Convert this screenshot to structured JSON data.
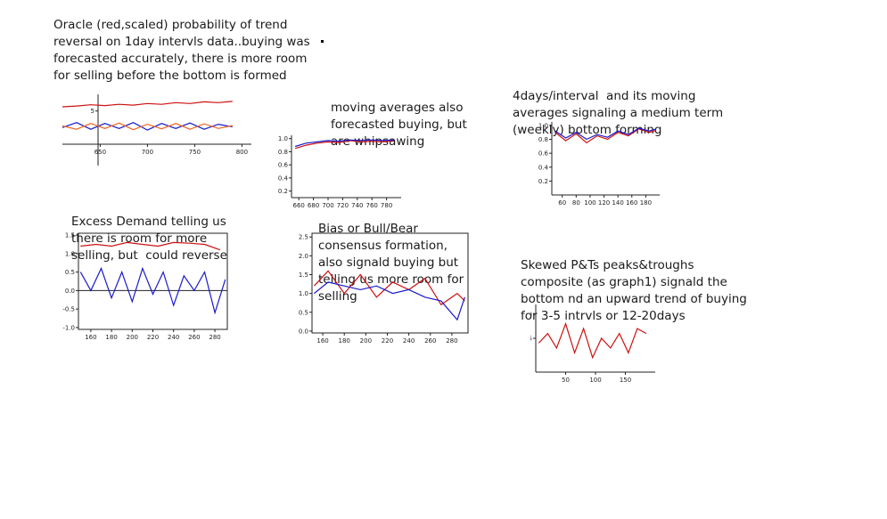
{
  "notes": {
    "n1": "Oracle (red,scaled) probability of trend\nreversal on 1day intervls data..buying was\nforecasted accurately, there is more room\nfor selling before the bottom is formed",
    "n2": "moving averages also\nforecasted buying, but\nare whipsawing",
    "n3": "4days/interval  and its moving\naverages signaling a medium term\n(weekly) bottom forming",
    "n4": "Excess Demand telling us\nthere is room for more\nselling, but  could reverse",
    "n5": "Bias or Bull/Bear\nconsensus formation,\nalso signald buying but\ntelling us more room for\nselling",
    "n6": "Skewed P&Ts peaks&troughs\ncomposite (as graph1) signald the\nbottom nd an upward trend of buying\nfor 3-5 intrvls or 12-20days"
  },
  "colors": {
    "red": "#cc1111",
    "blue": "#1a1acc",
    "orange": "#ee6622",
    "axis": "#222222"
  },
  "chart_data": [
    {
      "id": "c1",
      "type": "line",
      "xticks": [
        "650",
        "700",
        "750",
        "800"
      ],
      "xtick_values": [
        650,
        700,
        750,
        800
      ],
      "yticks": [
        "5"
      ],
      "ytick_values": [
        5
      ],
      "xlim": [
        610,
        810
      ],
      "ylim": [
        -3,
        9
      ],
      "series": [
        {
          "color": "red",
          "x": [
            610,
            625,
            640,
            655,
            670,
            685,
            700,
            715,
            730,
            745,
            760,
            775,
            790
          ],
          "y": [
            6.0,
            6.2,
            6.5,
            6.3,
            6.6,
            6.4,
            6.8,
            6.6,
            7.0,
            6.8,
            7.2,
            7.0,
            7.3
          ]
        },
        {
          "color": "blue",
          "x": [
            610,
            625,
            640,
            655,
            670,
            685,
            700,
            715,
            730,
            745,
            760,
            775,
            790
          ],
          "y": [
            1.0,
            2.2,
            0.6,
            2.0,
            0.8,
            2.2,
            0.4,
            2.0,
            0.8,
            2.1,
            0.6,
            1.8,
            1.2
          ]
        },
        {
          "color": "orange",
          "x": [
            610,
            625,
            640,
            655,
            670,
            685,
            700,
            715,
            730,
            745,
            760,
            775,
            790
          ],
          "y": [
            1.4,
            0.6,
            2.0,
            0.8,
            2.1,
            0.5,
            1.8,
            0.7,
            2.0,
            0.6,
            1.9,
            0.8,
            1.5
          ]
        }
      ]
    },
    {
      "id": "c2",
      "type": "line",
      "xticks": [
        "660",
        "680",
        "700",
        "720",
        "740",
        "760",
        "780"
      ],
      "xtick_values": [
        660,
        680,
        700,
        720,
        740,
        760,
        780
      ],
      "yticks": [
        "0.2",
        "0.4",
        "0.6",
        "0.8",
        "1.0"
      ],
      "ytick_values": [
        0.2,
        0.4,
        0.6,
        0.8,
        1.0
      ],
      "xlim": [
        650,
        800
      ],
      "ylim": [
        0.1,
        1.05
      ],
      "series": [
        {
          "color": "red",
          "x": [
            655,
            670,
            685,
            700,
            715,
            730,
            745,
            760,
            775,
            790
          ],
          "y": [
            0.85,
            0.9,
            0.93,
            0.95,
            0.94,
            0.97,
            0.95,
            0.96,
            0.95,
            0.97
          ]
        },
        {
          "color": "blue",
          "x": [
            655,
            670,
            685,
            700,
            715,
            730,
            745,
            760,
            775,
            790
          ],
          "y": [
            0.88,
            0.93,
            0.95,
            0.97,
            0.96,
            0.98,
            0.97,
            0.98,
            0.97,
            0.98
          ]
        }
      ]
    },
    {
      "id": "c3",
      "type": "line",
      "xticks": [
        "60",
        "80",
        "100",
        "120",
        "140",
        "160",
        "180"
      ],
      "xtick_values": [
        60,
        80,
        100,
        120,
        140,
        160,
        180
      ],
      "yticks": [
        "0.2",
        "0.4",
        "0.6",
        "0.8",
        "1.0"
      ],
      "ytick_values": [
        0.2,
        0.4,
        0.6,
        0.8,
        1.0
      ],
      "xlim": [
        45,
        200
      ],
      "ylim": [
        0.0,
        1.05
      ],
      "series": [
        {
          "color": "red",
          "x": [
            50,
            65,
            80,
            95,
            110,
            125,
            140,
            155,
            170,
            185,
            195
          ],
          "y": [
            0.9,
            0.78,
            0.88,
            0.75,
            0.85,
            0.8,
            0.9,
            0.85,
            0.95,
            0.9,
            0.93
          ]
        },
        {
          "color": "blue",
          "x": [
            50,
            65,
            80,
            95,
            110,
            125,
            140,
            155,
            170,
            185,
            195
          ],
          "y": [
            0.92,
            0.82,
            0.9,
            0.8,
            0.87,
            0.83,
            0.92,
            0.87,
            0.96,
            0.92,
            0.95
          ]
        }
      ]
    },
    {
      "id": "c4",
      "type": "line",
      "xticks": [
        "160",
        "180",
        "200",
        "220",
        "240",
        "260",
        "280"
      ],
      "xtick_values": [
        160,
        180,
        200,
        220,
        240,
        260,
        280
      ],
      "yticks": [
        "-1.0",
        "-0.5",
        "0.0",
        "0.5",
        "1.0",
        "1.5"
      ],
      "ytick_values": [
        -1.0,
        -0.5,
        0.0,
        0.5,
        1.0,
        1.5
      ],
      "xlim": [
        148,
        292
      ],
      "ylim": [
        -1.05,
        1.55
      ],
      "series": [
        {
          "color": "red",
          "x": [
            150,
            165,
            180,
            195,
            210,
            225,
            240,
            255,
            270,
            285
          ],
          "y": [
            1.2,
            1.25,
            1.2,
            1.3,
            1.25,
            1.2,
            1.3,
            1.28,
            1.25,
            1.1
          ]
        },
        {
          "color": "blue",
          "x": [
            150,
            160,
            170,
            180,
            190,
            200,
            210,
            220,
            230,
            240,
            250,
            260,
            270,
            280,
            290
          ],
          "y": [
            0.5,
            0.0,
            0.6,
            -0.2,
            0.5,
            -0.3,
            0.6,
            -0.1,
            0.5,
            -0.4,
            0.4,
            0.0,
            0.5,
            -0.6,
            0.3
          ]
        }
      ]
    },
    {
      "id": "c5",
      "type": "line",
      "xticks": [
        "160",
        "180",
        "200",
        "220",
        "240",
        "260",
        "280"
      ],
      "xtick_values": [
        160,
        180,
        200,
        220,
        240,
        260,
        280
      ],
      "yticks": [
        "0.0",
        "0.5",
        "1.0",
        "1.5",
        "2.0",
        "2.5"
      ],
      "ytick_values": [
        0.0,
        0.5,
        1.0,
        1.5,
        2.0,
        2.5
      ],
      "xlim": [
        150,
        295
      ],
      "ylim": [
        -0.05,
        2.6
      ],
      "series": [
        {
          "color": "red",
          "x": [
            152,
            165,
            180,
            195,
            210,
            225,
            240,
            255,
            270,
            285,
            292
          ],
          "y": [
            1.2,
            1.6,
            1.0,
            1.5,
            0.9,
            1.3,
            1.1,
            1.4,
            0.7,
            1.0,
            0.8
          ]
        },
        {
          "color": "blue",
          "x": [
            152,
            165,
            180,
            195,
            210,
            225,
            240,
            255,
            270,
            285,
            292
          ],
          "y": [
            1.0,
            1.3,
            1.2,
            1.1,
            1.2,
            1.0,
            1.1,
            0.9,
            0.8,
            0.3,
            0.9
          ]
        }
      ]
    },
    {
      "id": "c6",
      "type": "line",
      "xticks": [
        "50",
        "100",
        "150"
      ],
      "xtick_values": [
        50,
        100,
        150
      ],
      "yticks": [
        "5",
        "10"
      ],
      "ytick_values": [
        5,
        10
      ],
      "xlim": [
        0,
        200
      ],
      "ylim": [
        -2,
        12
      ],
      "series": [
        {
          "color": "red",
          "x": [
            5,
            20,
            35,
            50,
            65,
            80,
            95,
            110,
            125,
            140,
            155,
            170,
            185
          ],
          "y": [
            4,
            6,
            3,
            8,
            2,
            7,
            1,
            5,
            3,
            6,
            2,
            7,
            6
          ]
        }
      ]
    }
  ]
}
